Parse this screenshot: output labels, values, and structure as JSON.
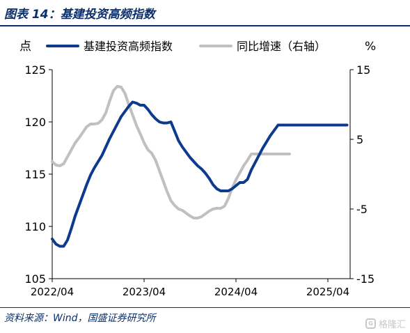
{
  "figure": {
    "title": "图表 14：基建投资高频指数",
    "source": "资料来源：Wind，国盛证券研究所",
    "watermark": "格隆汇"
  },
  "chart_data": {
    "type": "line",
    "left_unit": "点",
    "right_unit": "%",
    "title": "",
    "xlabel": "",
    "ylabel": "",
    "y_left": {
      "min": 105,
      "max": 125,
      "ticks": [
        105,
        110,
        115,
        120,
        125
      ]
    },
    "y_right": {
      "min": -15,
      "max": 15,
      "ticks": [
        -15,
        -5,
        5,
        15
      ]
    },
    "x_ticks": [
      "2022/04",
      "2023/04",
      "2024/04",
      "2025/04"
    ],
    "x_tick_months": [
      0,
      12,
      24,
      36
    ],
    "legend_position": "top",
    "series": [
      {
        "name": "基建投资高频指数",
        "axis": "left",
        "color": "#0d3a8c",
        "x_months": [
          0,
          0.5,
          1,
          1.5,
          2,
          2.5,
          3,
          3.5,
          4,
          4.5,
          5,
          5.5,
          6,
          6.5,
          7,
          7.5,
          8,
          8.5,
          9,
          9.5,
          10,
          10.5,
          11,
          11.5,
          12,
          12.5,
          13,
          13.5,
          14,
          14.5,
          15,
          15.5,
          16,
          16.5,
          17,
          17.5,
          18,
          18.5,
          19,
          19.5,
          20,
          20.5,
          21,
          21.5,
          22,
          22.5,
          23,
          23.5,
          24,
          24.5,
          25,
          25.5,
          26,
          26.5,
          27,
          27.5,
          28,
          28.5,
          29,
          29.5,
          30,
          30.5,
          31,
          31.5,
          32,
          32.5,
          33,
          33.5,
          34,
          34.5,
          35,
          35.5,
          36,
          36.5,
          37,
          37.5,
          38,
          38.5
        ],
        "values": [
          108.8,
          108.3,
          108.1,
          108.1,
          108.7,
          109.8,
          111.0,
          112.0,
          113.0,
          114.0,
          114.9,
          115.6,
          116.2,
          116.8,
          117.6,
          118.4,
          119.1,
          119.8,
          120.5,
          121.0,
          121.5,
          121.9,
          121.8,
          121.6,
          121.6,
          121.2,
          120.7,
          120.3,
          120.0,
          119.9,
          119.9,
          120.0,
          119.1,
          118.2,
          117.6,
          117.1,
          116.6,
          116.2,
          115.8,
          115.5,
          115.1,
          114.6,
          114.0,
          113.6,
          113.4,
          113.4,
          113.4,
          113.6,
          113.9,
          114.2,
          114.2,
          114.5,
          115.4,
          116.1,
          116.8,
          117.5,
          118.1,
          118.7,
          119.2,
          119.7,
          119.7,
          119.7,
          119.7,
          119.7,
          119.7,
          119.7,
          119.7,
          119.7,
          119.7,
          119.7,
          119.7,
          119.7,
          119.7,
          119.7,
          119.7,
          119.7,
          119.7,
          119.7
        ]
      },
      {
        "name": "同比增速（右轴）",
        "axis": "right",
        "color": "#c0c0c0",
        "x_months": [
          0,
          0.5,
          1,
          1.5,
          2,
          2.5,
          3,
          3.5,
          4,
          4.5,
          5,
          5.5,
          6,
          6.5,
          7,
          7.5,
          8,
          8.5,
          9,
          9.5,
          10,
          10.5,
          11,
          11.5,
          12,
          12.5,
          13,
          13.5,
          14,
          14.5,
          15,
          15.5,
          16,
          16.5,
          17,
          17.5,
          18,
          18.5,
          19,
          19.5,
          20,
          20.5,
          21,
          21.5,
          22,
          22.5,
          23,
          23.5,
          24,
          24.5,
          25,
          25.5,
          26,
          26.5,
          27,
          27.5,
          28,
          28.5,
          29,
          29.5,
          30,
          30.5,
          31
        ],
        "values": [
          1.8,
          1.3,
          1.2,
          1.5,
          2.5,
          3.5,
          4.5,
          5.2,
          6.0,
          6.8,
          7.2,
          7.2,
          7.3,
          7.8,
          8.8,
          10.5,
          12.0,
          12.6,
          12.5,
          11.6,
          10.0,
          8.5,
          7.0,
          5.8,
          4.5,
          3.5,
          3.0,
          2.0,
          0.5,
          -1.0,
          -2.5,
          -3.8,
          -4.5,
          -5.0,
          -5.2,
          -5.6,
          -6.0,
          -6.3,
          -6.3,
          -6.1,
          -5.7,
          -5.3,
          -5.0,
          -4.9,
          -4.9,
          -4.6,
          -3.5,
          -2.0,
          -0.8,
          0.2,
          1.2,
          2.0,
          2.9,
          2.9,
          2.9,
          2.9,
          2.9,
          2.9,
          2.9,
          2.9,
          2.9,
          2.9,
          2.9
        ]
      }
    ]
  }
}
